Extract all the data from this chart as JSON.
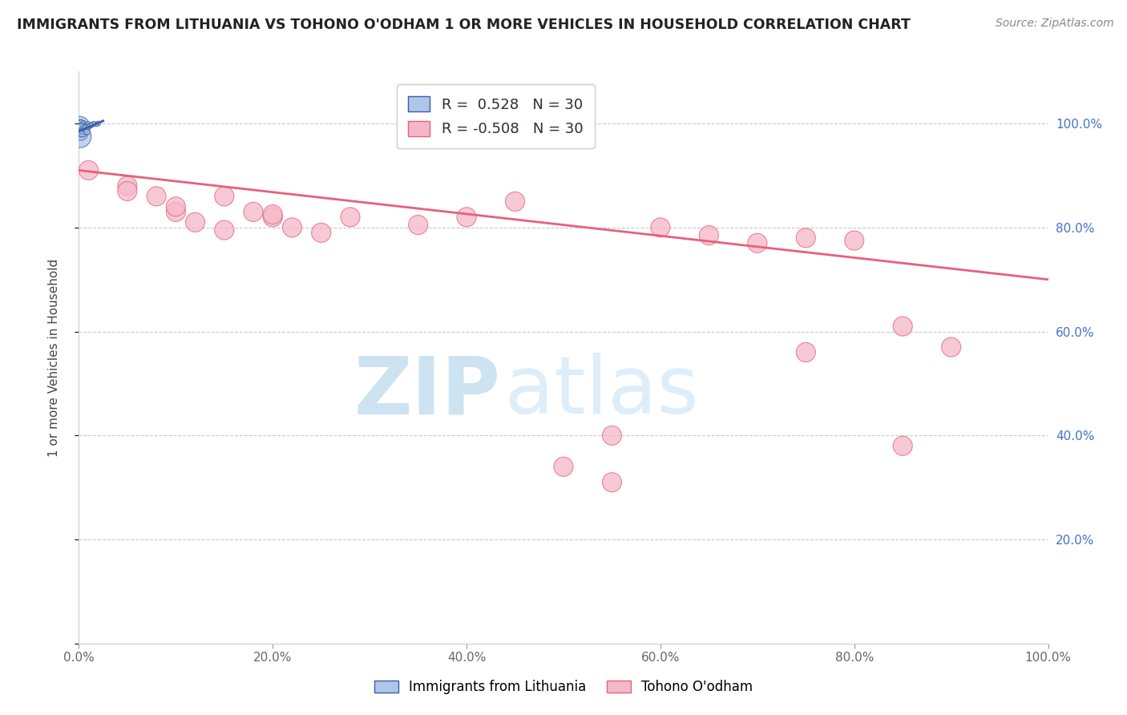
{
  "title": "IMMIGRANTS FROM LITHUANIA VS TOHONO O'ODHAM 1 OR MORE VEHICLES IN HOUSEHOLD CORRELATION CHART",
  "source": "Source: ZipAtlas.com",
  "ylabel": "1 or more Vehicles in Household",
  "legend_blue_label": "Immigrants from Lithuania",
  "legend_pink_label": "Tohono O'odham",
  "R_blue": 0.528,
  "N_blue": 30,
  "R_pink": -0.508,
  "N_pink": 30,
  "blue_color": "#aec6e8",
  "pink_color": "#f5b8c8",
  "blue_line_color": "#3a5fa8",
  "pink_line_color": "#e8607a",
  "blue_scatter_x": [
    0.1,
    0.15,
    0.2,
    0.25,
    0.3,
    0.35,
    0.4,
    0.5,
    0.6,
    0.7,
    0.8,
    1.0,
    1.2,
    1.5,
    2.0,
    0.12,
    0.18,
    0.22,
    0.28,
    0.38,
    0.45,
    0.55,
    0.65,
    0.75,
    0.85,
    0.95,
    1.1,
    1.3,
    1.6,
    1.8
  ],
  "blue_scatter_y": [
    99.5,
    99.2,
    98.8,
    99.6,
    99.3,
    99.0,
    98.5,
    99.7,
    99.4,
    99.1,
    98.9,
    99.8,
    99.6,
    99.9,
    100.0,
    97.5,
    98.2,
    98.6,
    99.0,
    98.3,
    98.7,
    99.1,
    98.9,
    99.2,
    98.4,
    99.3,
    99.5,
    99.7,
    100.0,
    99.8
  ],
  "blue_scatter_size": [
    300,
    200,
    150,
    100,
    80,
    70,
    60,
    50,
    40,
    35,
    30,
    25,
    20,
    20,
    18,
    400,
    180,
    130,
    90,
    65,
    55,
    45,
    38,
    32,
    28,
    22,
    18,
    16,
    14,
    12
  ],
  "pink_scatter_x": [
    1.0,
    5.0,
    8.0,
    10.0,
    12.0,
    15.0,
    18.0,
    20.0,
    22.0,
    25.0,
    28.0,
    35.0,
    40.0,
    45.0,
    50.0,
    55.0,
    60.0,
    65.0,
    70.0,
    75.0,
    80.0,
    85.0,
    90.0,
    5.0,
    10.0,
    15.0,
    20.0,
    55.0,
    75.0,
    85.0
  ],
  "pink_scatter_y": [
    91.0,
    88.0,
    86.0,
    83.0,
    81.0,
    79.5,
    83.0,
    82.0,
    80.0,
    79.0,
    82.0,
    80.5,
    82.0,
    85.0,
    34.0,
    31.0,
    80.0,
    78.5,
    77.0,
    78.0,
    77.5,
    61.0,
    57.0,
    87.0,
    84.0,
    86.0,
    82.5,
    40.0,
    56.0,
    38.0
  ],
  "pink_scatter_size": [
    25,
    25,
    25,
    25,
    25,
    25,
    25,
    25,
    25,
    25,
    25,
    25,
    25,
    25,
    25,
    25,
    25,
    25,
    25,
    25,
    25,
    25,
    25,
    25,
    25,
    25,
    25,
    25,
    25,
    25
  ],
  "blue_trend_x": [
    0,
    2.5
  ],
  "blue_trend_y": [
    98.5,
    100.5
  ],
  "pink_trend_x": [
    0,
    100
  ],
  "pink_trend_y": [
    91.0,
    70.0
  ],
  "xlim": [
    0,
    100
  ],
  "ylim": [
    0,
    110
  ],
  "xticks": [
    0,
    20,
    40,
    60,
    80,
    100
  ],
  "xtick_labels": [
    "0.0%",
    "20.0%",
    "40.0%",
    "60.0%",
    "80.0%",
    "100.0%"
  ],
  "yticks": [
    0,
    20,
    40,
    60,
    80,
    100
  ],
  "ytick_labels_right": [
    "",
    "20.0%",
    "40.0%",
    "60.0%",
    "80.0%",
    "100.0%"
  ],
  "grid_color": "#c8c8c8",
  "watermark_zip": "ZIP",
  "watermark_atlas": "atlas",
  "background_color": "#ffffff"
}
